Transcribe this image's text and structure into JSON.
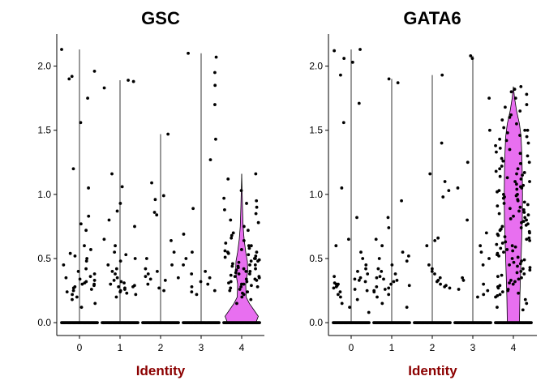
{
  "chart_data": [
    {
      "type": "violin",
      "title": "GSC",
      "xlabel": "Identity",
      "ylabel": "",
      "categories": [
        "0",
        "1",
        "2",
        "3",
        "4"
      ],
      "yticks": [
        "0.0",
        "0.5",
        "1.0",
        "1.5",
        "2.0"
      ],
      "ylim": [
        -0.1,
        2.25
      ],
      "grid": false,
      "legend": "none",
      "colors": {
        "violin_fill": "#e86ff0",
        "point": "#000000",
        "axis_title": "#8b0000"
      },
      "max_values": [
        2.13,
        1.89,
        1.47,
        2.1,
        1.16
      ],
      "violin_profiles": [
        {
          "category": "4",
          "levels": [
            {
              "y": 0.0,
              "w": 0.7
            },
            {
              "y": 0.05,
              "w": 0.82
            },
            {
              "y": 0.1,
              "w": 0.6
            },
            {
              "y": 0.15,
              "w": 0.38
            },
            {
              "y": 0.2,
              "w": 0.22
            },
            {
              "y": 0.3,
              "w": 0.2
            },
            {
              "y": 0.4,
              "w": 0.3
            },
            {
              "y": 0.48,
              "w": 0.28
            },
            {
              "y": 0.55,
              "w": 0.2
            },
            {
              "y": 0.65,
              "w": 0.12
            },
            {
              "y": 0.75,
              "w": 0.07
            },
            {
              "y": 0.9,
              "w": 0.04
            },
            {
              "y": 1.16,
              "w": 0.0
            }
          ]
        }
      ],
      "points": [
        {
          "category": "0",
          "values": [
            2.13,
            1.96,
            1.92,
            1.9,
            1.75,
            1.56,
            1.2,
            1.05,
            0.83,
            0.77,
            0.72,
            0.6,
            0.57,
            0.54,
            0.52,
            0.5,
            0.48,
            0.45,
            0.42,
            0.4,
            0.38,
            0.36,
            0.35,
            0.34,
            0.33,
            0.32,
            0.31,
            0.3,
            0.3,
            0.29,
            0.28,
            0.27,
            0.26,
            0.25,
            0.24,
            0.22,
            0.2,
            0.18,
            0.15,
            0.12
          ]
        },
        {
          "category": "1",
          "values": [
            1.89,
            1.88,
            1.83,
            1.16,
            1.06,
            0.93,
            0.87,
            0.8,
            0.75,
            0.65,
            0.6,
            0.55,
            0.53,
            0.5,
            0.48,
            0.45,
            0.42,
            0.4,
            0.38,
            0.35,
            0.33,
            0.32,
            0.31,
            0.3,
            0.29,
            0.28,
            0.28,
            0.27,
            0.26,
            0.25,
            0.24,
            0.23,
            0.22,
            0.2
          ]
        },
        {
          "category": "2",
          "values": [
            1.47,
            1.09,
            0.99,
            0.96,
            0.86,
            0.84,
            0.64,
            0.55,
            0.5,
            0.45,
            0.42,
            0.4,
            0.38,
            0.36,
            0.35,
            0.34,
            0.33,
            0.3,
            0.27,
            0.25
          ]
        },
        {
          "category": "3",
          "values": [
            2.1,
            2.07,
            1.95,
            1.85,
            1.7,
            1.43,
            1.27,
            0.89,
            0.69,
            0.55,
            0.5,
            0.45,
            0.4,
            0.38,
            0.35,
            0.32,
            0.3,
            0.28,
            0.25,
            0.24,
            0.22
          ]
        },
        {
          "category": "4",
          "values": [
            1.16,
            1.12,
            1.03,
            0.97,
            0.95,
            0.93,
            0.9,
            0.88,
            0.85,
            0.8,
            0.78,
            0.75,
            0.72,
            0.7,
            0.68,
            0.66,
            0.64,
            0.62,
            0.6,
            0.6,
            0.58,
            0.57,
            0.56,
            0.55,
            0.55,
            0.54,
            0.53,
            0.52,
            0.51,
            0.5,
            0.5,
            0.49,
            0.48,
            0.48,
            0.47,
            0.46,
            0.45,
            0.45,
            0.44,
            0.44,
            0.43,
            0.42,
            0.42,
            0.41,
            0.4,
            0.4,
            0.39,
            0.38,
            0.38,
            0.37,
            0.36,
            0.36,
            0.35,
            0.34,
            0.34,
            0.33,
            0.32,
            0.32,
            0.31,
            0.3,
            0.3,
            0.29,
            0.28,
            0.28,
            0.27,
            0.26,
            0.25,
            0.24,
            0.23,
            0.22,
            0.2,
            0.18,
            0.15
          ]
        }
      ],
      "zero_points_per_category": 38
    },
    {
      "type": "violin",
      "title": "GATA6",
      "xlabel": "Identity",
      "ylabel": "",
      "categories": [
        "0",
        "1",
        "2",
        "3",
        "4"
      ],
      "yticks": [
        "0.0",
        "0.5",
        "1.0",
        "1.5",
        "2.0"
      ],
      "ylim": [
        -0.1,
        2.25
      ],
      "grid": false,
      "legend": "none",
      "colors": {
        "violin_fill": "#e86ff0",
        "point": "#000000",
        "axis_title": "#8b0000"
      },
      "max_values": [
        2.13,
        1.9,
        1.93,
        2.08,
        1.84
      ],
      "violin_profiles": [
        {
          "category": "4",
          "levels": [
            {
              "y": 0.0,
              "w": 0.3
            },
            {
              "y": 0.2,
              "w": 0.32
            },
            {
              "y": 0.4,
              "w": 0.36
            },
            {
              "y": 0.6,
              "w": 0.4
            },
            {
              "y": 0.8,
              "w": 0.44
            },
            {
              "y": 1.0,
              "w": 0.45
            },
            {
              "y": 1.15,
              "w": 0.44
            },
            {
              "y": 1.3,
              "w": 0.42
            },
            {
              "y": 1.45,
              "w": 0.38
            },
            {
              "y": 1.55,
              "w": 0.3
            },
            {
              "y": 1.65,
              "w": 0.16
            },
            {
              "y": 1.75,
              "w": 0.06
            },
            {
              "y": 1.84,
              "w": 0.0
            }
          ]
        }
      ],
      "points": [
        {
          "category": "0",
          "values": [
            2.13,
            2.12,
            2.06,
            2.03,
            1.93,
            1.71,
            1.56,
            1.05,
            0.82,
            0.65,
            0.6,
            0.55,
            0.5,
            0.45,
            0.42,
            0.4,
            0.38,
            0.36,
            0.35,
            0.34,
            0.33,
            0.32,
            0.31,
            0.3,
            0.3,
            0.29,
            0.28,
            0.27,
            0.26,
            0.25,
            0.24,
            0.22,
            0.2,
            0.18,
            0.15,
            0.12,
            0.08
          ]
        },
        {
          "category": "1",
          "values": [
            1.9,
            1.87,
            0.95,
            0.82,
            0.74,
            0.65,
            0.6,
            0.55,
            0.52,
            0.5,
            0.48,
            0.45,
            0.42,
            0.4,
            0.38,
            0.36,
            0.35,
            0.34,
            0.33,
            0.32,
            0.3,
            0.29,
            0.28,
            0.27,
            0.26,
            0.25,
            0.24,
            0.22,
            0.2,
            0.15,
            0.12
          ]
        },
        {
          "category": "2",
          "values": [
            1.93,
            1.4,
            1.16,
            1.1,
            1.03,
            0.98,
            0.66,
            0.64,
            0.6,
            0.45,
            0.42,
            0.4,
            0.38,
            0.35,
            0.33,
            0.32,
            0.3,
            0.29,
            0.28,
            0.27
          ]
        },
        {
          "category": "3",
          "values": [
            2.08,
            2.06,
            1.75,
            1.5,
            1.25,
            1.05,
            0.8,
            0.7,
            0.6,
            0.55,
            0.5,
            0.45,
            0.35,
            0.33,
            0.3,
            0.26,
            0.25,
            0.22,
            0.2
          ]
        },
        {
          "category": "4",
          "values": [
            1.84,
            1.82,
            1.8,
            1.78,
            1.75,
            1.7,
            1.68,
            1.65,
            1.62,
            1.6,
            1.58,
            1.55,
            1.52,
            1.5,
            1.5,
            1.48,
            1.46,
            1.45,
            1.43,
            1.42,
            1.4,
            1.38,
            1.36,
            1.35,
            1.33,
            1.32,
            1.3,
            1.28,
            1.26,
            1.25,
            1.24,
            1.22,
            1.2,
            1.2,
            1.18,
            1.17,
            1.16,
            1.15,
            1.14,
            1.13,
            1.12,
            1.1,
            1.1,
            1.08,
            1.07,
            1.06,
            1.05,
            1.04,
            1.03,
            1.02,
            1.0,
            1.0,
            0.99,
            0.98,
            0.97,
            0.96,
            0.95,
            0.94,
            0.93,
            0.92,
            0.91,
            0.9,
            0.89,
            0.88,
            0.87,
            0.86,
            0.85,
            0.84,
            0.83,
            0.82,
            0.81,
            0.8,
            0.79,
            0.78,
            0.77,
            0.76,
            0.75,
            0.74,
            0.73,
            0.72,
            0.71,
            0.7,
            0.69,
            0.68,
            0.67,
            0.66,
            0.65,
            0.64,
            0.63,
            0.62,
            0.61,
            0.6,
            0.59,
            0.58,
            0.57,
            0.56,
            0.55,
            0.54,
            0.53,
            0.52,
            0.51,
            0.5,
            0.49,
            0.48,
            0.47,
            0.46,
            0.45,
            0.44,
            0.43,
            0.42,
            0.41,
            0.4,
            0.39,
            0.38,
            0.37,
            0.36,
            0.35,
            0.34,
            0.33,
            0.32,
            0.31,
            0.3,
            0.29,
            0.28,
            0.27,
            0.26,
            0.25,
            0.24,
            0.23,
            0.22,
            0.21,
            0.2,
            0.18,
            0.15,
            0.12,
            0.1
          ]
        }
      ],
      "zero_points_per_category": 38
    }
  ]
}
